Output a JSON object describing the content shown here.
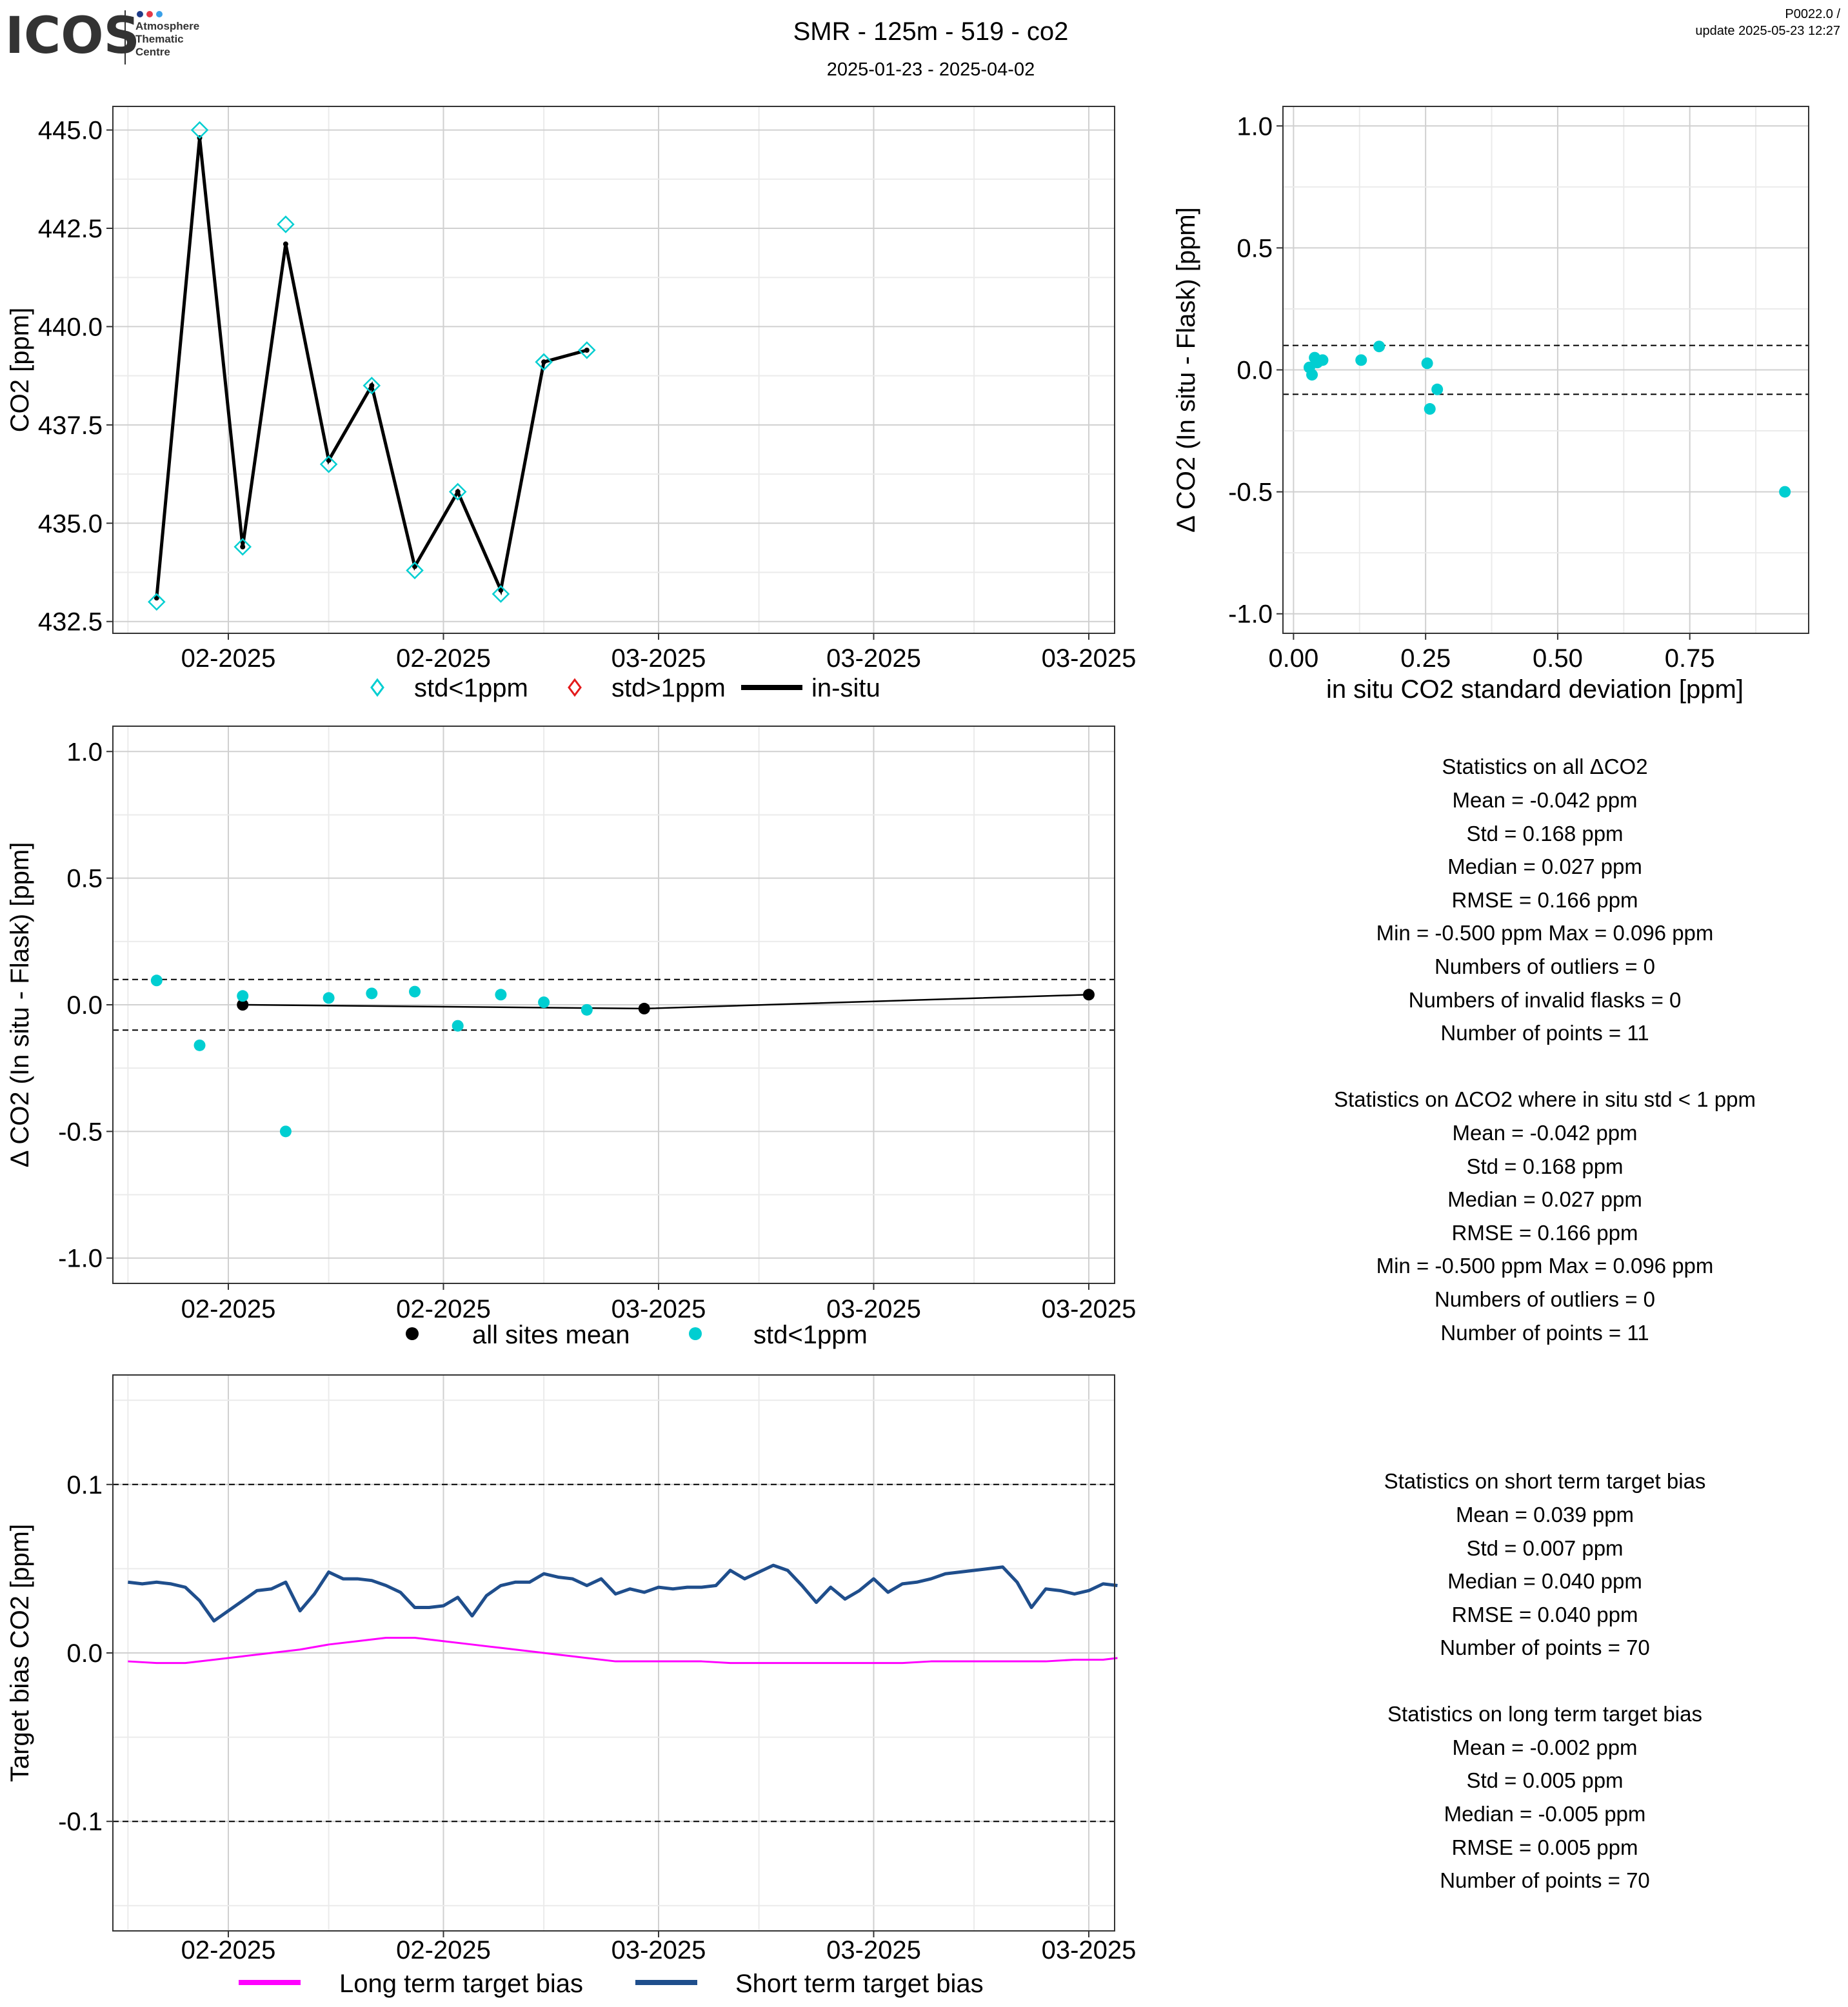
{
  "header": {
    "logo_text": "ICOS",
    "logo_sub": [
      "Atmosphere",
      "Thematic",
      "Centre"
    ],
    "title": "SMR - 125m - 519 - co2",
    "date_range": "2025-01-23 - 2025-04-02",
    "version": "P0022.0 /",
    "update": "update  2025-05-23 12:27"
  },
  "colors": {
    "cyan": "#00CED1",
    "red": "#E41A1C",
    "black": "#000000",
    "navy": "#1F4E8C",
    "magenta": "#FF00FF",
    "grid_major": "#D0D0D0",
    "grid_minor": "#EBEBEB"
  },
  "date_tick_labels": [
    "02-2025",
    "02-2025",
    "03-2025",
    "03-2025",
    "03-2025"
  ],
  "chart_data": [
    {
      "id": "co2_timeseries",
      "type": "line",
      "xlabel": "",
      "ylabel": "CO2 [ppm]",
      "ylim": [
        432.2,
        445.6
      ],
      "xlim": [
        "2025-01-23",
        "2025-04-02"
      ],
      "yticks": [
        432.5,
        435.0,
        437.5,
        440.0,
        442.5,
        445.0
      ],
      "ytick_labels": [
        "432.5",
        "435.0",
        "437.5",
        "440.0",
        "442.5",
        "445.0"
      ],
      "legend": [
        "std<1ppm",
        "std>1ppm",
        "in-situ"
      ],
      "legend_position": "bottom",
      "series": [
        {
          "name": "std<1ppm",
          "marker": "diamond",
          "x": [
            "2025-01-26",
            "2025-01-29",
            "2025-02-01",
            "2025-02-04",
            "2025-02-07",
            "2025-02-10",
            "2025-02-13",
            "2025-02-16",
            "2025-02-19",
            "2025-02-22",
            "2025-02-25"
          ],
          "y": [
            433.0,
            445.0,
            434.4,
            442.6,
            436.5,
            438.5,
            433.8,
            435.8,
            433.2,
            439.1,
            439.4
          ]
        },
        {
          "name": "in-situ",
          "marker": "line",
          "x": [
            "2025-01-26",
            "2025-01-29",
            "2025-02-01",
            "2025-02-04",
            "2025-02-07",
            "2025-02-10",
            "2025-02-13",
            "2025-02-16",
            "2025-02-19",
            "2025-02-22",
            "2025-02-25"
          ],
          "y": [
            433.1,
            444.8,
            434.4,
            442.1,
            436.6,
            438.5,
            433.9,
            435.8,
            433.3,
            439.1,
            439.4
          ]
        }
      ]
    },
    {
      "id": "delta_vs_std",
      "type": "scatter",
      "xlabel": "in situ CO2 standard deviation [ppm]",
      "ylabel": "Δ CO2 (In situ - Flask) [ppm]",
      "xlim": [
        -0.02,
        0.975
      ],
      "ylim": [
        -1.08,
        1.08
      ],
      "xticks": [
        0.0,
        0.25,
        0.5,
        0.75
      ],
      "xtick_labels": [
        "0.00",
        "0.25",
        "0.50",
        "0.75"
      ],
      "yticks": [
        -1.0,
        -0.5,
        0.0,
        0.5,
        1.0
      ],
      "ytick_labels": [
        "-1.0",
        "-0.5",
        "0.0",
        "0.5",
        "1.0"
      ],
      "hlines": [
        0.1,
        -0.1
      ],
      "series": [
        {
          "x": [
            0.03,
            0.035,
            0.04,
            0.045,
            0.055,
            0.128,
            0.162,
            0.253,
            0.258,
            0.272,
            0.93
          ],
          "y": [
            0.01,
            -0.02,
            0.05,
            0.03,
            0.04,
            0.04,
            0.096,
            0.027,
            -0.16,
            -0.08,
            -0.5
          ]
        }
      ]
    },
    {
      "id": "delta_timeseries",
      "type": "scatter",
      "xlabel": "",
      "ylabel": "Δ CO2 (In situ - Flask) [ppm]",
      "ylim": [
        -1.1,
        1.1
      ],
      "xlim": [
        "2025-01-23",
        "2025-04-02"
      ],
      "yticks": [
        -1.0,
        -0.5,
        0.0,
        0.5,
        1.0
      ],
      "ytick_labels": [
        "-1.0",
        "-0.5",
        "0.0",
        "0.5",
        "1.0"
      ],
      "hlines": [
        0.1,
        -0.1
      ],
      "legend": [
        "all sites mean",
        "std<1ppm"
      ],
      "legend_position": "bottom",
      "series": [
        {
          "name": "std<1ppm",
          "x": [
            "2025-01-26",
            "2025-01-29",
            "2025-02-01",
            "2025-02-04",
            "2025-02-07",
            "2025-02-10",
            "2025-02-13",
            "2025-02-16",
            "2025-02-19",
            "2025-02-22",
            "2025-02-25"
          ],
          "y": [
            0.096,
            -0.16,
            0.035,
            -0.5,
            0.027,
            0.045,
            0.052,
            -0.083,
            0.04,
            0.01,
            -0.02
          ]
        },
        {
          "name": "all sites mean",
          "x": [
            "2025-02-01",
            "2025-03-01",
            "2025-04-01"
          ],
          "y": [
            0.0,
            -0.015,
            0.04
          ]
        }
      ]
    },
    {
      "id": "target_bias",
      "type": "line",
      "xlabel": "",
      "ylabel": "Target bias CO2 [ppm]",
      "ylim": [
        -0.165,
        0.165
      ],
      "xlim": [
        "2025-01-23",
        "2025-04-02"
      ],
      "yticks": [
        -0.1,
        0.0,
        0.1
      ],
      "ytick_labels": [
        "-0.1",
        "0.0",
        "0.1"
      ],
      "hlines": [
        0.1,
        -0.1
      ],
      "legend": [
        "Long term target bias",
        "Short term target bias"
      ],
      "legend_position": "bottom",
      "series": [
        {
          "name": "Short term target bias",
          "x": [
            "2025-01-24",
            "2025-01-25",
            "2025-01-26",
            "2025-01-27",
            "2025-01-28",
            "2025-01-29",
            "2025-01-30",
            "2025-01-31",
            "2025-02-01",
            "2025-02-02",
            "2025-02-03",
            "2025-02-04",
            "2025-02-05",
            "2025-02-06",
            "2025-02-07",
            "2025-02-08",
            "2025-02-09",
            "2025-02-10",
            "2025-02-11",
            "2025-02-12",
            "2025-02-13",
            "2025-02-14",
            "2025-02-15",
            "2025-02-16",
            "2025-02-17",
            "2025-02-18",
            "2025-02-19",
            "2025-02-20",
            "2025-02-21",
            "2025-02-22",
            "2025-02-23",
            "2025-02-24",
            "2025-02-25",
            "2025-02-26",
            "2025-02-27",
            "2025-02-28",
            "2025-03-01",
            "2025-03-02",
            "2025-03-03",
            "2025-03-04",
            "2025-03-05",
            "2025-03-06",
            "2025-03-07",
            "2025-03-08",
            "2025-03-09",
            "2025-03-10",
            "2025-03-11",
            "2025-03-12",
            "2025-03-13",
            "2025-03-14",
            "2025-03-15",
            "2025-03-16",
            "2025-03-17",
            "2025-03-18",
            "2025-03-19",
            "2025-03-20",
            "2025-03-21",
            "2025-03-22",
            "2025-03-23",
            "2025-03-24",
            "2025-03-25",
            "2025-03-26",
            "2025-03-27",
            "2025-03-28",
            "2025-03-29",
            "2025-03-30",
            "2025-03-31",
            "2025-04-01",
            "2025-04-02",
            "2025-04-03"
          ],
          "y": [
            0.042,
            0.041,
            0.042,
            0.041,
            0.039,
            0.031,
            0.019,
            0.025,
            0.031,
            0.037,
            0.038,
            0.042,
            0.025,
            0.035,
            0.048,
            0.044,
            0.044,
            0.043,
            0.04,
            0.036,
            0.027,
            0.027,
            0.028,
            0.033,
            0.022,
            0.034,
            0.04,
            0.042,
            0.042,
            0.047,
            0.045,
            0.044,
            0.04,
            0.044,
            0.035,
            0.038,
            0.036,
            0.039,
            0.038,
            0.039,
            0.039,
            0.04,
            0.049,
            0.044,
            0.048,
            0.052,
            0.049,
            0.04,
            0.03,
            0.039,
            0.032,
            0.037,
            0.044,
            0.036,
            0.041,
            0.042,
            0.044,
            0.047,
            0.048,
            0.049,
            0.05,
            0.051,
            0.042,
            0.027,
            0.038,
            0.037,
            0.035,
            0.037,
            0.041,
            0.04
          ]
        },
        {
          "name": "Long term target bias",
          "x": [
            "2025-01-24",
            "2025-01-26",
            "2025-01-28",
            "2025-01-30",
            "2025-02-01",
            "2025-02-03",
            "2025-02-05",
            "2025-02-07",
            "2025-02-09",
            "2025-02-11",
            "2025-02-13",
            "2025-02-15",
            "2025-02-17",
            "2025-02-19",
            "2025-02-21",
            "2025-02-23",
            "2025-02-25",
            "2025-02-27",
            "2025-03-01",
            "2025-03-03",
            "2025-03-05",
            "2025-03-07",
            "2025-03-09",
            "2025-03-11",
            "2025-03-13",
            "2025-03-15",
            "2025-03-17",
            "2025-03-19",
            "2025-03-21",
            "2025-03-23",
            "2025-03-25",
            "2025-03-27",
            "2025-03-29",
            "2025-03-31",
            "2025-04-02",
            "2025-04-03"
          ],
          "y": [
            -0.005,
            -0.006,
            -0.006,
            -0.004,
            -0.002,
            0.0,
            0.002,
            0.005,
            0.007,
            0.009,
            0.009,
            0.007,
            0.005,
            0.003,
            0.001,
            -0.001,
            -0.003,
            -0.005,
            -0.005,
            -0.005,
            -0.005,
            -0.006,
            -0.006,
            -0.006,
            -0.006,
            -0.006,
            -0.006,
            -0.006,
            -0.005,
            -0.005,
            -0.005,
            -0.005,
            -0.005,
            -0.004,
            -0.004,
            -0.003
          ]
        }
      ]
    }
  ],
  "stats": {
    "block1": [
      "Statistics on all ΔCO2",
      "Mean =  -0.042 ppm",
      "Std =  0.168 ppm",
      "Median =  0.027 ppm",
      "RMSE =  0.166 ppm",
      "Min =  -0.500 ppm Max =  0.096 ppm",
      "Numbers of outliers =  0",
      "Numbers of invalid flasks =  0",
      "Number of points =  11"
    ],
    "block2": [
      "Statistics on ΔCO2 where in situ std < 1 ppm",
      "Mean =  -0.042 ppm",
      "Std =  0.168 ppm",
      "Median =  0.027 ppm",
      "RMSE =  0.166 ppm",
      "Min =  -0.500 ppm Max =  0.096 ppm",
      "Numbers of outliers =  0",
      "Number of points =  11"
    ],
    "block3": [
      "Statistics on short term target bias",
      "Mean =  0.039 ppm",
      "Std =  0.007 ppm",
      "Median =  0.040 ppm",
      "RMSE =  0.040 ppm",
      "Number of points =  70"
    ],
    "block4": [
      "Statistics on long term target bias",
      "Mean =  -0.002 ppm",
      "Std =  0.005 ppm",
      "Median =  -0.005 ppm",
      "RMSE =  0.005 ppm",
      "Number of points =  70"
    ]
  }
}
